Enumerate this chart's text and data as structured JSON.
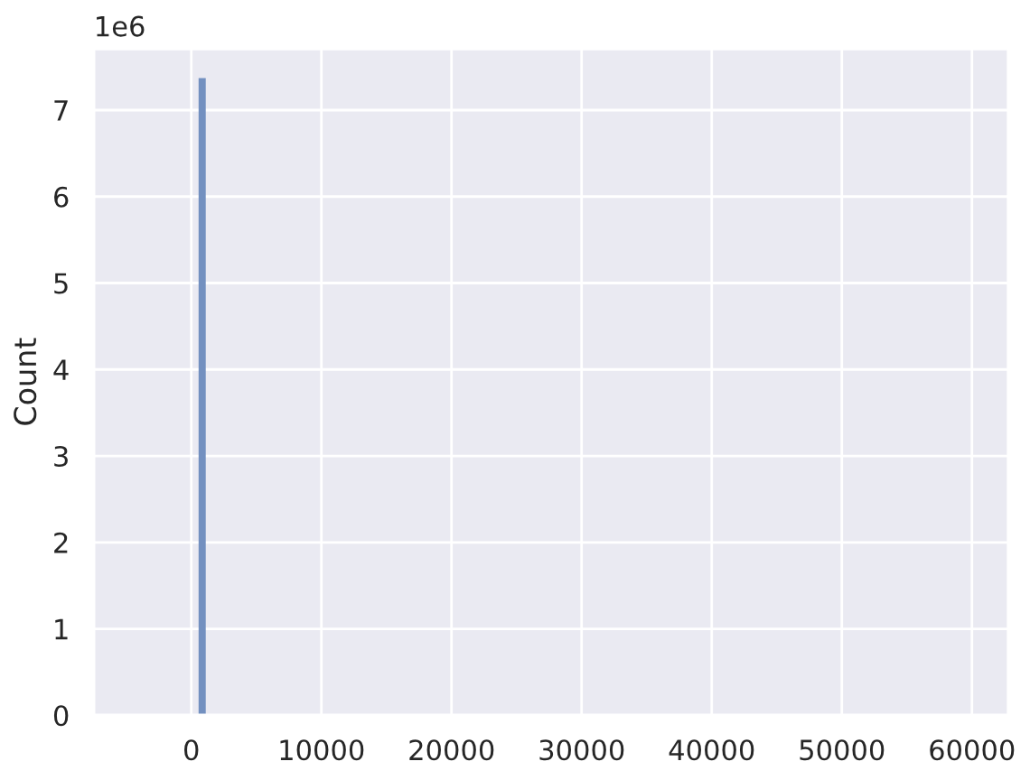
{
  "chart_data": {
    "type": "histogram",
    "ylabel": "Count",
    "bins": [
      560,
      1110
    ],
    "values": [
      7.37
    ],
    "color": "#7390c0",
    "xlim": [
      -7500,
      62800
    ],
    "xticks": [
      0,
      10000,
      20000,
      30000,
      40000,
      50000,
      60000
    ],
    "ylim": [
      0,
      7.71
    ],
    "yticks": [
      0,
      1,
      2,
      3,
      4,
      5,
      6,
      7
    ],
    "annotations": [
      "1e6"
    ],
    "grid": true
  }
}
